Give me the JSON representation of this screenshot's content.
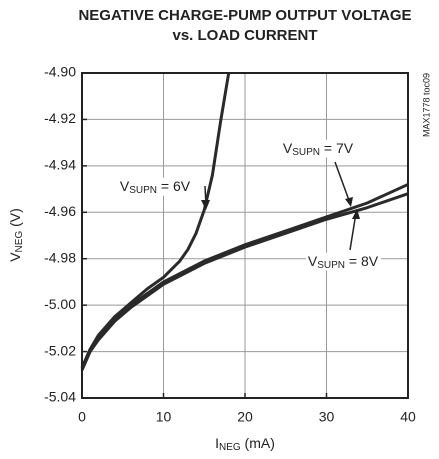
{
  "chart_data": {
    "type": "line",
    "title": [
      "NEGATIVE CHARGE-PUMP OUTPUT VOLTAGE",
      "vs. LOAD CURRENT"
    ],
    "x_label": {
      "main": "I",
      "sub": "NEG",
      "unit": " (mA)"
    },
    "y_label": {
      "main": "V",
      "sub": "NEG",
      "unit": " (V)"
    },
    "side_note": "MAX1778 toc09",
    "xlim": [
      0,
      40
    ],
    "xticks": [
      0,
      10,
      20,
      30,
      40
    ],
    "ylim": [
      -5.04,
      -4.9
    ],
    "yticks": [
      {
        "value": -4.9,
        "label": "-4.90"
      },
      {
        "value": -4.92,
        "label": "-4.92"
      },
      {
        "value": -4.94,
        "label": "-4.94"
      },
      {
        "value": -4.96,
        "label": "-4.96"
      },
      {
        "value": -4.98,
        "label": "-4.98"
      },
      {
        "value": -5.0,
        "label": "-5.00"
      },
      {
        "value": -5.02,
        "label": "-5.02"
      },
      {
        "value": -5.04,
        "label": "-5.04"
      }
    ],
    "grid": true,
    "series": [
      {
        "name": {
          "main": "V",
          "sub": "SUPN",
          "rest": " = 6V"
        },
        "color": "#2a2a2a",
        "x": [
          0,
          1,
          2,
          4,
          6,
          8,
          10,
          12,
          13,
          14,
          15,
          16,
          17,
          18
        ],
        "values": [
          -5.027,
          -5.019,
          -5.013,
          -5.005,
          -4.999,
          -4.993,
          -4.988,
          -4.981,
          -4.976,
          -4.969,
          -4.959,
          -4.944,
          -4.921,
          -4.9
        ]
      },
      {
        "name": {
          "main": "V",
          "sub": "SUPN",
          "rest": " = 7V"
        },
        "color": "#2a2a2a",
        "x": [
          0,
          1,
          2,
          4,
          6,
          8,
          10,
          15,
          20,
          25,
          30,
          35,
          40
        ],
        "values": [
          -5.027,
          -5.019,
          -5.014,
          -5.006,
          -5.0,
          -4.995,
          -4.99,
          -4.981,
          -4.974,
          -4.968,
          -4.962,
          -4.956,
          -4.948
        ]
      },
      {
        "name": {
          "main": "V",
          "sub": "SUPN",
          "rest": " = 8V"
        },
        "color": "#2a2a2a",
        "x": [
          0,
          1,
          2,
          4,
          6,
          8,
          10,
          15,
          20,
          25,
          30,
          35,
          40
        ],
        "values": [
          -5.028,
          -5.02,
          -5.015,
          -5.007,
          -5.001,
          -4.996,
          -4.991,
          -4.982,
          -4.975,
          -4.969,
          -4.963,
          -4.958,
          -4.952
        ]
      }
    ]
  }
}
